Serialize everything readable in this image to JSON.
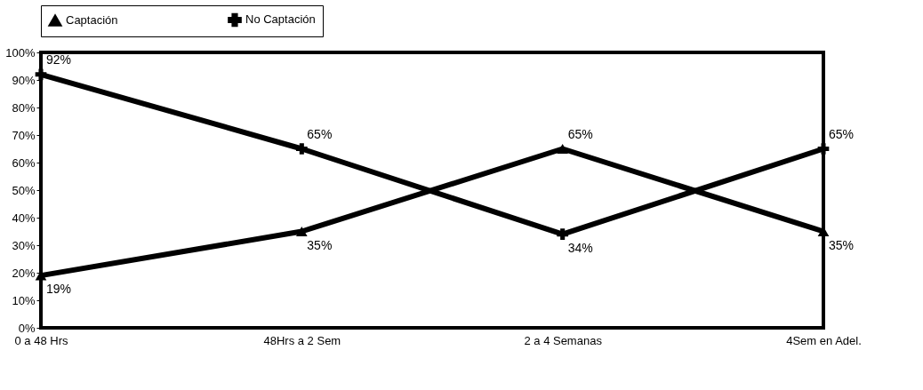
{
  "chart_data": {
    "type": "line",
    "categories": [
      "0 a 48 Hrs",
      "48Hrs a 2 Sem",
      "2 a 4 Semanas",
      "4Sem en Adel."
    ],
    "series": [
      {
        "name": "Captación",
        "color": "#000000",
        "marker": "triangle",
        "values": [
          19,
          35,
          65,
          35
        ],
        "value_labels": [
          "19%",
          "35%",
          "65%",
          "35%"
        ]
      },
      {
        "name": "No Captación",
        "color": "#000000",
        "marker": "cross",
        "values": [
          92,
          65,
          34,
          65
        ],
        "value_labels": [
          "92%",
          "65%",
          "34%",
          "65%"
        ]
      }
    ],
    "ylim": [
      0,
      100
    ],
    "yticks": [
      {
        "value": 0,
        "label": "0%"
      },
      {
        "value": 10,
        "label": "10%"
      },
      {
        "value": 20,
        "label": "20%"
      },
      {
        "value": 30,
        "label": "30%"
      },
      {
        "value": 40,
        "label": "40%"
      },
      {
        "value": 50,
        "label": "50%"
      },
      {
        "value": 60,
        "label": "60%"
      },
      {
        "value": 70,
        "label": "70%"
      },
      {
        "value": 80,
        "label": "80%"
      },
      {
        "value": 90,
        "label": "90%"
      },
      {
        "value": 100,
        "label": "100%"
      }
    ],
    "grid": false,
    "legend": "top",
    "line_style": "solid"
  }
}
